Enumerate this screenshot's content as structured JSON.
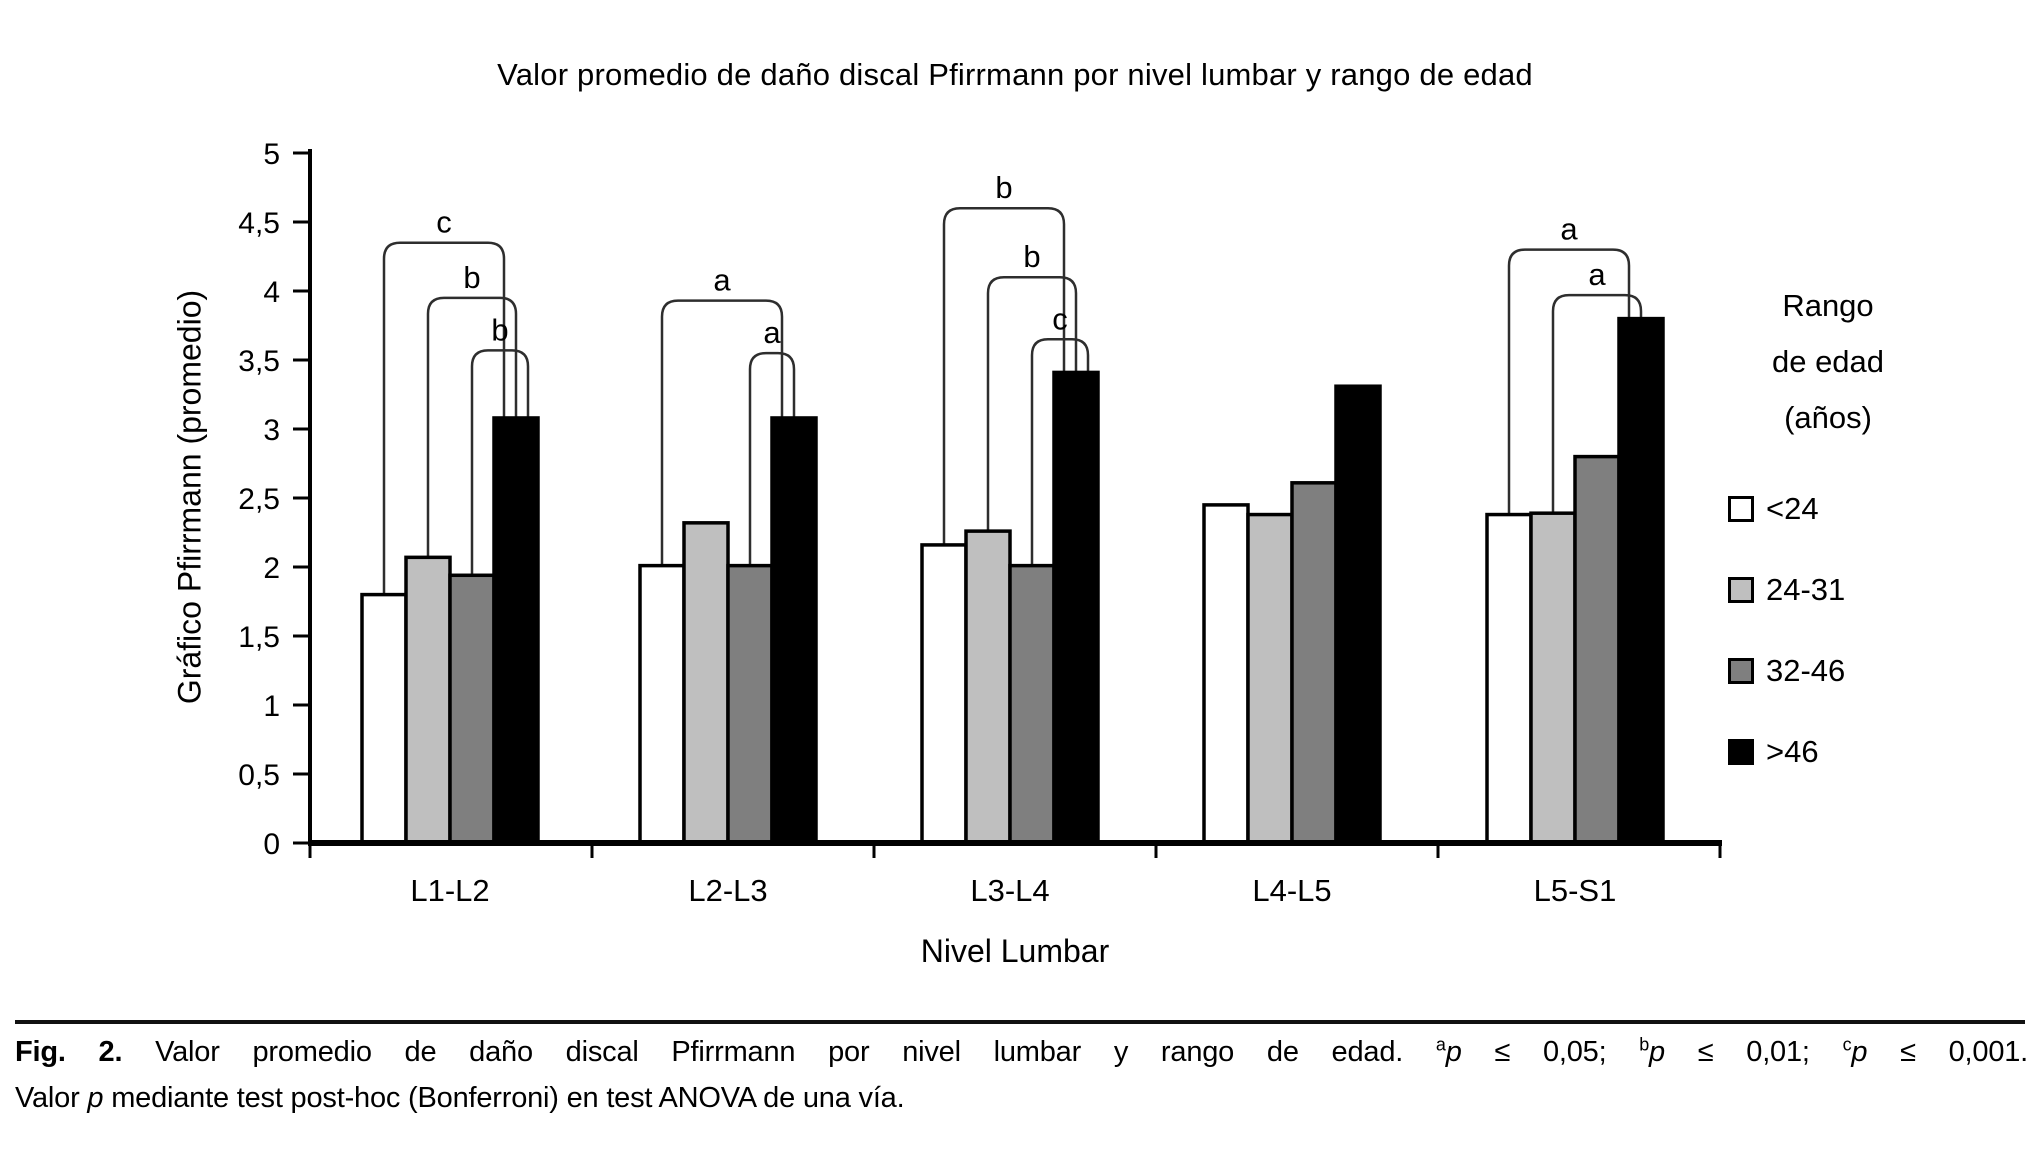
{
  "chart_data": {
    "type": "bar",
    "title": "Valor promedio de daño discal Pfirrmann por nivel lumbar y rango de edad",
    "xlabel": "Nivel Lumbar",
    "ylabel": "Gráfico Pfirrmann (promedio)",
    "ylim": [
      0,
      5
    ],
    "ytick_step": 0.5,
    "ytick_labels": [
      "0",
      "0,5",
      "1",
      "1,5",
      "2",
      "2,5",
      "3",
      "3,5",
      "4",
      "4,5",
      "5"
    ],
    "grid": false,
    "categories": [
      "L1-L2",
      "L2-L3",
      "L3-L4",
      "L4-L5",
      "L5-S1"
    ],
    "series": [
      {
        "name": "<24",
        "color": "#ffffff",
        "values": [
          1.8,
          2.01,
          2.16,
          2.45,
          2.38
        ]
      },
      {
        "name": "24-31",
        "color": "#bfbfbf",
        "values": [
          2.07,
          2.32,
          2.26,
          2.38,
          2.39
        ]
      },
      {
        "name": "32-46",
        "color": "#7f7f7f",
        "values": [
          1.94,
          2.01,
          2.01,
          2.61,
          2.8
        ]
      },
      {
        "name": ">46",
        "color": "#000000",
        "values": [
          3.08,
          3.08,
          3.41,
          3.31,
          3.8
        ]
      }
    ],
    "legend": {
      "position": "right",
      "title_lines": [
        "Rango",
        "de edad",
        "(años)"
      ]
    },
    "significance_brackets": [
      {
        "group": "L1-L2",
        "from": "<24",
        "to": ">46",
        "label": "c",
        "level": 4.35
      },
      {
        "group": "L1-L2",
        "from": "24-31",
        "to": ">46",
        "label": "b",
        "level": 3.95
      },
      {
        "group": "L1-L2",
        "from": "32-46",
        "to": ">46",
        "label": "b",
        "level": 3.57
      },
      {
        "group": "L2-L3",
        "from": "<24",
        "to": ">46",
        "label": "a",
        "level": 3.93
      },
      {
        "group": "L2-L3",
        "from": "32-46",
        "to": ">46",
        "label": "a",
        "level": 3.55
      },
      {
        "group": "L3-L4",
        "from": "<24",
        "to": ">46",
        "label": "b",
        "level": 4.6
      },
      {
        "group": "L3-L4",
        "from": "24-31",
        "to": ">46",
        "label": "b",
        "level": 4.1
      },
      {
        "group": "L3-L4",
        "from": "32-46",
        "to": ">46",
        "label": "c",
        "level": 3.65
      },
      {
        "group": "L5-S1",
        "from": "<24",
        "to": ">46",
        "label": "a",
        "level": 4.3
      },
      {
        "group": "L5-S1",
        "from": "24-31",
        "to": ">46",
        "label": "a",
        "level": 3.97
      }
    ]
  },
  "caption": {
    "fig_label": "Fig. 2.",
    "body": "Valor promedio de daño discal Pfirrmann por nivel lumbar y rango de edad.",
    "sig": [
      {
        "marker": "a",
        "p": "p",
        "cond": " ≤ 0,05; "
      },
      {
        "marker": "b",
        "p": "p",
        "cond": " ≤ 0,01; "
      },
      {
        "marker": "c",
        "p": "p",
        "cond": " ≤ 0,001."
      }
    ],
    "line2_pre": "Valor ",
    "line2_p": "p",
    "line2_post": " mediante test post-hoc (Bonferroni) en test ANOVA de una vía."
  }
}
